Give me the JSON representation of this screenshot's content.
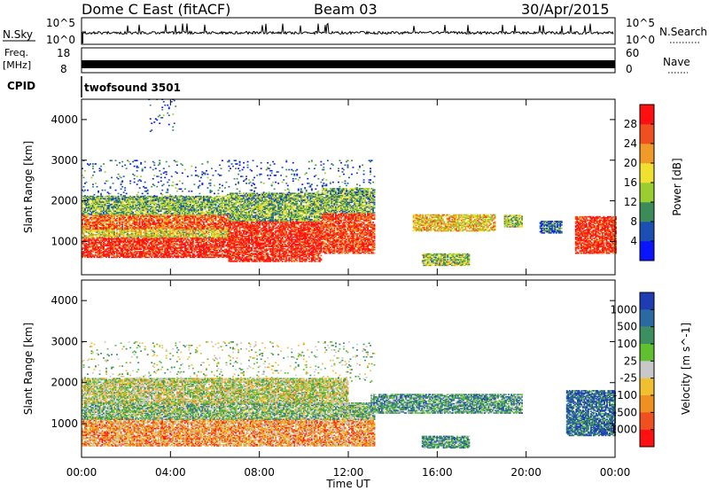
{
  "header": {
    "title": "Dome C East (fitACF)",
    "beam": "Beam 03",
    "date": "30/Apr/2015"
  },
  "strips": {
    "nsky_label": "N.Sky",
    "nsky_ticks": [
      "10^5",
      "10^0"
    ],
    "nsearch_label": "N.Search",
    "freq_label_line1": "Freq.",
    "freq_label_line2": "[MHz]",
    "freq_ticks": [
      "18",
      "8"
    ],
    "nave_label": "Nave",
    "nave_ticks": [
      "60",
      "0"
    ],
    "cpid_label": "CPID",
    "cpid_value": "twofsound 3501"
  },
  "chart_data": [
    {
      "type": "heatmap",
      "name": "power",
      "ylabel": "Slant Range [km]",
      "xlabel": "Time UT",
      "xticks": [
        "00:00",
        "04:00",
        "08:00",
        "12:00",
        "16:00",
        "20:00",
        "00:00"
      ],
      "xlim_hours": [
        0,
        24
      ],
      "yticks": [
        1000,
        2000,
        3000,
        4000
      ],
      "ylim": [
        180,
        4500
      ],
      "colorbar": {
        "label": "Power [dB]",
        "ticks": [
          "4",
          "8",
          "12",
          "16",
          "20",
          "24",
          "28"
        ],
        "range": [
          0,
          30
        ],
        "colors": [
          "#0a14ff",
          "#1c4fb4",
          "#3c8c5a",
          "#9acd32",
          "#f0e030",
          "#f09a28",
          "#f05020",
          "#ff1010"
        ]
      },
      "regions": [
        {
          "t": [
            0.0,
            6.6
          ],
          "r": [
            600,
            1100
          ],
          "level": 0.92
        },
        {
          "t": [
            0.0,
            6.6
          ],
          "r": [
            1100,
            1300
          ],
          "level": 0.55
        },
        {
          "t": [
            0.0,
            6.6
          ],
          "r": [
            1300,
            1650
          ],
          "level": 0.8
        },
        {
          "t": [
            0.0,
            6.6
          ],
          "r": [
            1650,
            2100
          ],
          "level": 0.4
        },
        {
          "t": [
            6.6,
            10.8
          ],
          "r": [
            500,
            1500
          ],
          "level": 0.92
        },
        {
          "t": [
            6.6,
            10.8
          ],
          "r": [
            1500,
            2200
          ],
          "level": 0.4
        },
        {
          "t": [
            10.8,
            13.2
          ],
          "r": [
            700,
            1700
          ],
          "level": 0.85
        },
        {
          "t": [
            10.8,
            13.2
          ],
          "r": [
            1700,
            2300
          ],
          "level": 0.4
        },
        {
          "t": [
            14.9,
            18.6
          ],
          "r": [
            1250,
            1650
          ],
          "level": 0.6
        },
        {
          "t": [
            15.3,
            17.4
          ],
          "r": [
            400,
            700
          ],
          "level": 0.45
        },
        {
          "t": [
            19.0,
            19.8
          ],
          "r": [
            1350,
            1650
          ],
          "level": 0.45
        },
        {
          "t": [
            20.6,
            21.6
          ],
          "r": [
            1200,
            1500
          ],
          "level": 0.25
        },
        {
          "t": [
            22.2,
            24.0
          ],
          "r": [
            700,
            1600
          ],
          "level": 0.9
        },
        {
          "t": [
            0.0,
            13.2
          ],
          "r": [
            2000,
            3000
          ],
          "level": 0.2,
          "sparse": true
        },
        {
          "t": [
            3.0,
            4.2
          ],
          "r": [
            3700,
            4500
          ],
          "level": 0.2,
          "sparse": true
        }
      ]
    },
    {
      "type": "heatmap",
      "name": "velocity",
      "ylabel": "Slant Range [km]",
      "xlabel": "Time UT",
      "xticks": [
        "00:00",
        "04:00",
        "08:00",
        "12:00",
        "16:00",
        "20:00",
        "00:00"
      ],
      "xlim_hours": [
        0,
        24
      ],
      "yticks": [
        1000,
        2000,
        3000,
        4000
      ],
      "ylim": [
        180,
        4500
      ],
      "colorbar": {
        "label": "Velocity [m s^-1]",
        "ticks": [
          "1000",
          "500",
          "100",
          "25",
          "-25",
          "-100",
          "-500",
          "-1000"
        ],
        "colors": [
          "#1e3cb4",
          "#2a6aa0",
          "#3c9060",
          "#5fc030",
          "#c8c8c8",
          "#f0c030",
          "#f09020",
          "#f05020",
          "#ff1010"
        ]
      },
      "regions": [
        {
          "t": [
            0.0,
            13.2
          ],
          "r": [
            450,
            1100
          ],
          "level": 0.7
        },
        {
          "t": [
            0.0,
            13.2
          ],
          "r": [
            1100,
            1500
          ],
          "level": 0.4
        },
        {
          "t": [
            0.0,
            12.0
          ],
          "r": [
            1500,
            2100
          ],
          "level": 0.5
        },
        {
          "t": [
            13.0,
            19.8
          ],
          "r": [
            1250,
            1700
          ],
          "level": 0.3
        },
        {
          "t": [
            15.3,
            17.4
          ],
          "r": [
            400,
            700
          ],
          "level": 0.3
        },
        {
          "t": [
            21.8,
            24.0
          ],
          "r": [
            700,
            1800
          ],
          "level": 0.15
        },
        {
          "t": [
            0.0,
            13.2
          ],
          "r": [
            2000,
            3000
          ],
          "level": 0.45,
          "sparse": true
        }
      ]
    }
  ]
}
